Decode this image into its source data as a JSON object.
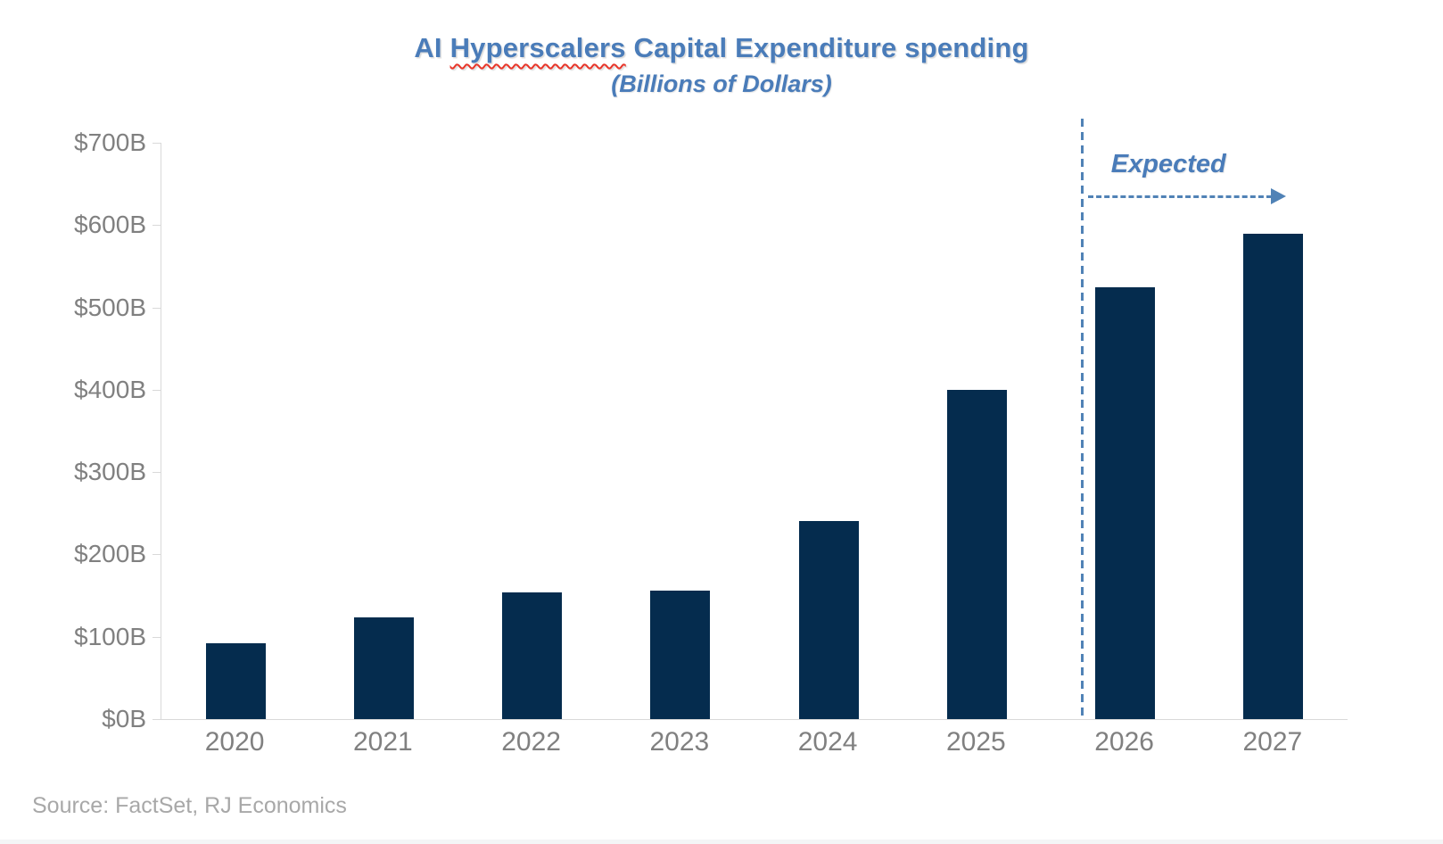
{
  "page": {
    "source_note": "Source: FactSet, RJ Economics"
  },
  "chart_data": {
    "type": "bar",
    "title": "AI Hyperscalers Capital Expenditure spending",
    "title_parts": {
      "before": "AI ",
      "misspelled": "Hyperscalers",
      "after": " Capital Expenditure spending"
    },
    "subtitle": "(Billions of Dollars)",
    "categories": [
      "2020",
      "2021",
      "2022",
      "2023",
      "2024",
      "2025",
      "2026",
      "2027"
    ],
    "values": [
      92,
      124,
      154,
      156,
      241,
      400,
      524,
      589
    ],
    "ylim": [
      0,
      700
    ],
    "ytick_step": 100,
    "ytick_labels": [
      "$0B",
      "$100B",
      "$200B",
      "$300B",
      "$400B",
      "$500B",
      "$600B",
      "$700B"
    ],
    "grid": false,
    "legend": "none",
    "annotation": {
      "label": "Expected",
      "divider_after_category": "2025",
      "applies_to": [
        "2026",
        "2027"
      ],
      "arrow_direction": "right"
    },
    "colors": {
      "bar": "#052c4e",
      "accent": "#4a7cb9",
      "accent_dash": "#5082b6",
      "axis": "#d9d9d9",
      "tick_label": "#808080",
      "source_text": "#a8a8a8",
      "spellcheck_underline": "#e8362a"
    }
  }
}
